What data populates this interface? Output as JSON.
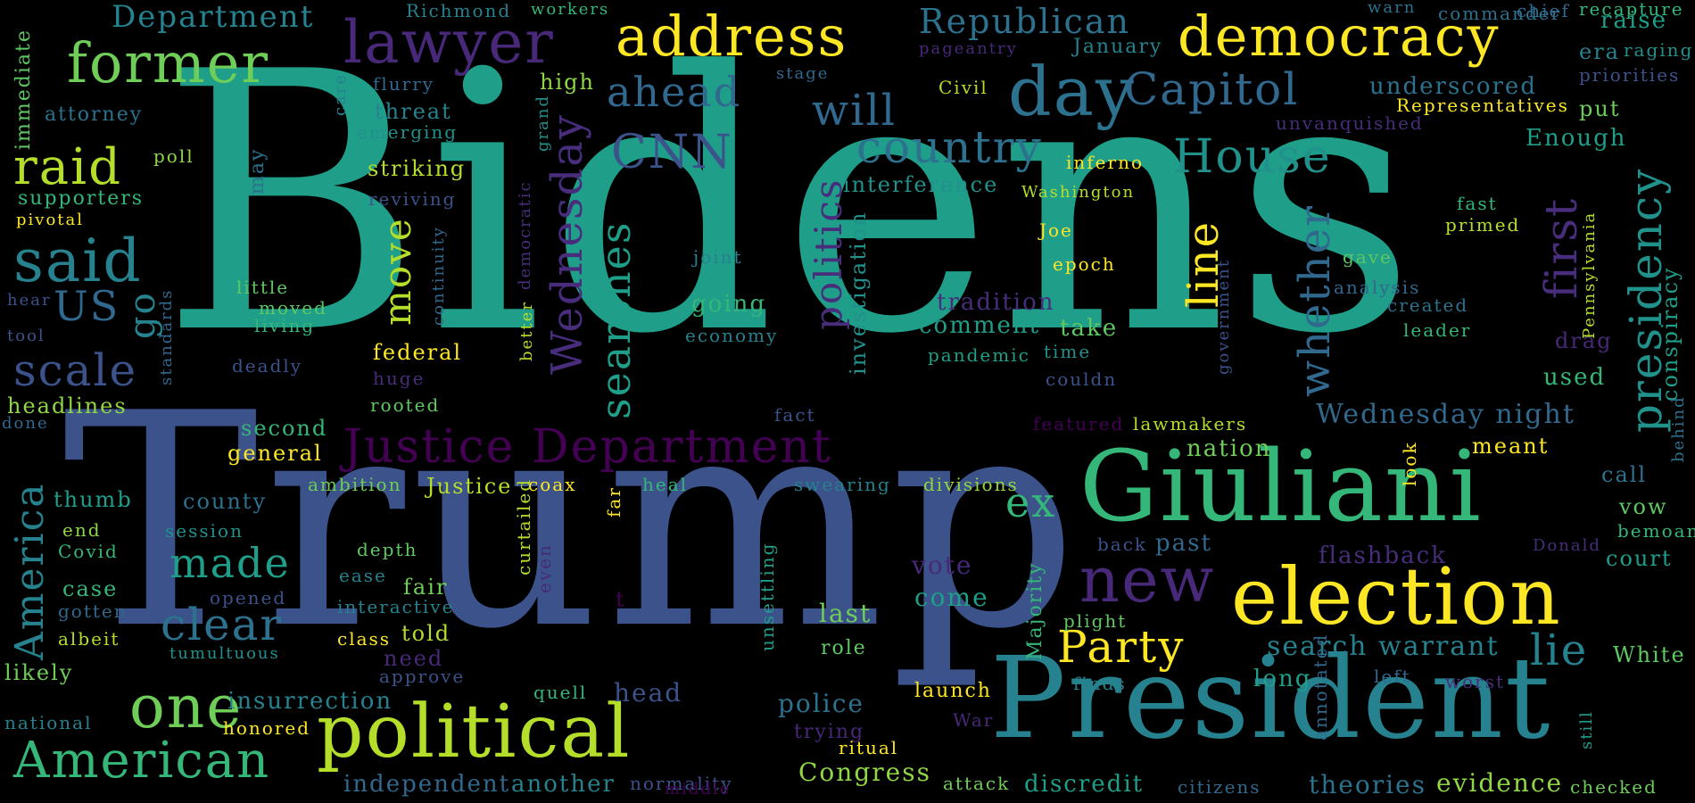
{
  "words": {
    "bidens": "Bidens",
    "trump": "Trump",
    "president": "President",
    "giuliani": "Giuliani",
    "election": "election",
    "political": "political",
    "justice_department": "Justice Department",
    "democracy": "democracy",
    "address": "address",
    "lawyer": "lawyer",
    "former": "former",
    "day": "day",
    "capitol": "Capitol",
    "house": "House",
    "country": "country",
    "will": "will",
    "cnn": "CNN",
    "ahead": "ahead",
    "republican": "Republican",
    "presidency": "presidency",
    "first": "first",
    "whether": "whether",
    "line": "line",
    "searches": "searches",
    "wednesday": "Wednesday",
    "politics": "politics",
    "said": "said",
    "raid": "raid",
    "scale": "scale",
    "us": "US",
    "go": "go",
    "one": "one",
    "american": "American",
    "america": "America",
    "clear": "clear",
    "made": "made",
    "new": "new",
    "party": "Party",
    "lie": "lie",
    "ex": "ex",
    "move": "move",
    "search_warrant": "search warrant",
    "wednesday_night": "Wednesday night",
    "insurrection": "insurrection",
    "independent": "independent",
    "another": "another",
    "congress": "Congress",
    "discredit": "discredit",
    "theories": "theories",
    "evidence": "evidence",
    "citizens": "citizens",
    "checked": "checked",
    "department": "Department",
    "richmond": "Richmond",
    "workers": "workers",
    "warn": "warn",
    "commander": "commander",
    "recapture": "recapture",
    "chief": "chief",
    "raise": "raise",
    "era": "era",
    "raging": "raging",
    "priorities": "priorities",
    "put": "put",
    "enough": "Enough",
    "underscored": "underscored",
    "unvanquished": "unvanquished",
    "representatives": "Representatives",
    "january": "January",
    "pageantry": "pageantry",
    "stage": "stage",
    "high": "high",
    "civil": "Civil",
    "inferno": "inferno",
    "washington": "Washington",
    "interference": "interference",
    "attorney": "attorney",
    "flurry": "flurry",
    "care": "care",
    "threat": "threat",
    "emerging": "emerging",
    "grand": "grand",
    "immediate": "immediate",
    "poll": "poll",
    "supporters": "supporters",
    "pivotal": "pivotal",
    "striking": "striking",
    "reviving": "reviving",
    "may": "may",
    "continuity": "continuity",
    "democratic": "democratic",
    "better": "better",
    "joint": "joint",
    "going": "going",
    "economy": "economy",
    "tradition": "tradition",
    "comment": "comment",
    "pandemic": "pandemic",
    "take": "take",
    "time": "time",
    "couldn": "couldn",
    "joe": "Joe",
    "epoch": "epoch",
    "government": "government",
    "investigation": "investigation",
    "fast": "fast",
    "primed": "primed",
    "gave": "gave",
    "analysis": "analysis",
    "created": "created",
    "leader": "leader",
    "pennsylvania": "Pennsylvania",
    "drag": "drag",
    "used": "used",
    "conspiracy": "conspiracy",
    "behind": "behind",
    "hear": "hear",
    "tool": "tool",
    "little": "little",
    "moved": "moved",
    "living": "living",
    "deadly": "deadly",
    "standards": "standards",
    "federal": "federal",
    "huge": "huge",
    "rooted": "rooted",
    "headlines": "headlines",
    "done": "done",
    "second": "second",
    "general": "general",
    "fact": "fact",
    "featured": "featured",
    "lawmakers": "lawmakers",
    "nation": "nation",
    "look": "look",
    "meant": "meant",
    "call": "call",
    "vow": "vow",
    "bemoan": "bemoan",
    "court": "court",
    "donald": "Donald",
    "flashback": "flashback",
    "back": "back",
    "past": "past",
    "thumb": "thumb",
    "ambition": "ambition",
    "justice": "Justice",
    "coax": "coax",
    "heal": "heal",
    "swearing": "swearing",
    "divisions": "divisions",
    "county": "county",
    "session": "session",
    "end": "end",
    "covid": "Covid",
    "depth": "depth",
    "ease": "ease",
    "curtailed": "curtailed",
    "even": "even",
    "far": "far",
    "unsettling": "unsettling",
    "majority": "Majority",
    "vote": "vote",
    "come": "come",
    "case": "case",
    "gotten": "gotten",
    "albeit": "albeit",
    "opened": "opened",
    "interactive": "interactive",
    "class": "class",
    "told": "told",
    "fair": "fair",
    "need": "need",
    "approve": "approve",
    "tumultuous": "tumultuous",
    "likely": "likely",
    "national": "national",
    "honored": "honored",
    "t": "t",
    "last": "last",
    "role": "role",
    "plight": "plight",
    "finds": "finds",
    "long": "long",
    "annotated": "annotated",
    "left": "left",
    "worst": "worst",
    "white": "White",
    "still": "still",
    "quell": "quell",
    "head": "head",
    "police": "police",
    "trying": "trying",
    "ritual": "ritual",
    "launch": "launch",
    "war": "War",
    "normality": "normality",
    "middle": "middle",
    "attack": "attack"
  },
  "colors": {
    "background": "#000000",
    "palette": [
      "#440154",
      "#3b528b",
      "#21918c",
      "#5ec962",
      "#fde725"
    ]
  }
}
